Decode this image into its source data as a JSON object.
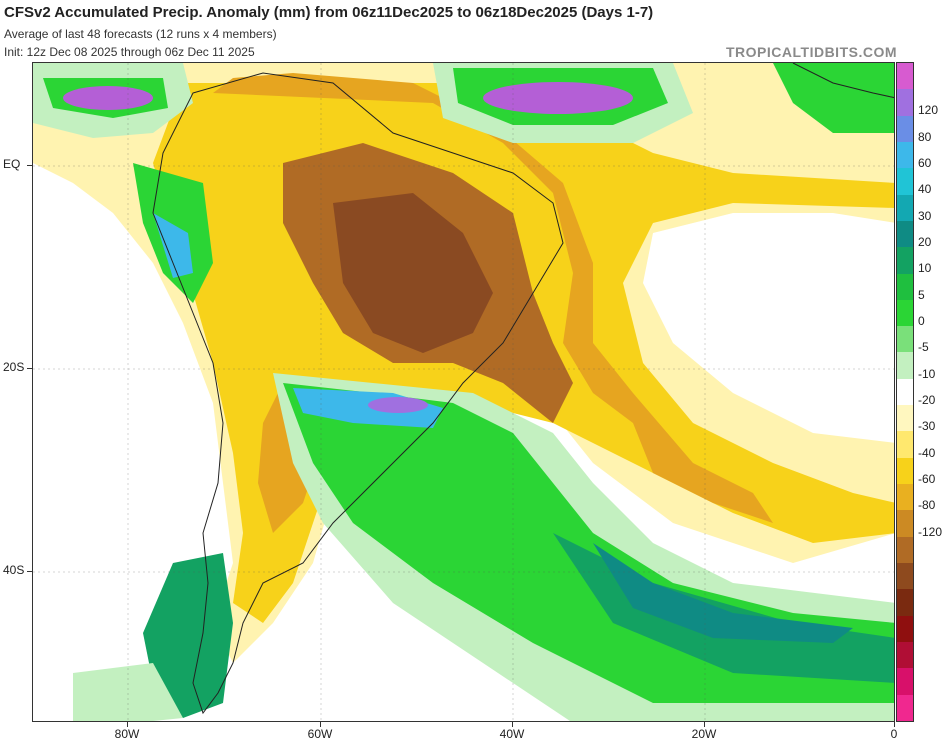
{
  "header": {
    "title": "CFSv2 Accumulated Precip. Anomaly (mm) from 06z11Dec2025 to 06z18Dec2025 (Days 1-7)",
    "subtitle": "Average of last 48 forecasts (12 runs x 4 members)",
    "init": "Init: 12z Dec 08 2025 through 06z Dec 11 2025",
    "brand": "TROPICALTIDBITS.COM"
  },
  "axes": {
    "lat_labels": [
      "EQ",
      "20S",
      "40S"
    ],
    "lon_labels": [
      "80W",
      "60W",
      "40W",
      "20W",
      "0"
    ]
  },
  "colorbar": {
    "labels": [
      "120",
      "80",
      "60",
      "40",
      "30",
      "20",
      "10",
      "5",
      "0",
      "-5",
      "-10",
      "-20",
      "-30",
      "-40",
      "-60",
      "-80",
      "-120"
    ],
    "colors": [
      "#d75bd0",
      "#a070e0",
      "#6a8ee6",
      "#3db8ea",
      "#20c4d6",
      "#13a8b2",
      "#0f8b84",
      "#13a262",
      "#1fbf3f",
      "#2bd535",
      "#7ae07a",
      "#c3f0c0",
      "#ffffff",
      "#fff7bf",
      "#ffe86e",
      "#f7d21a",
      "#e9b020",
      "#cc8a23",
      "#b06b25",
      "#8e4a1e",
      "#7a2a10",
      "#8f0f0f",
      "#b00e35",
      "#d8106a",
      "#f0288f"
    ]
  },
  "map_colors": {
    "dry_light": "#fff3b0",
    "dry_mid": "#f7d21a",
    "dry_orange": "#e6a520",
    "dry_brown": "#b06b25",
    "dry_dark": "#8a4a22",
    "wet_light": "#c3f0c0",
    "wet_green": "#2bd535",
    "wet_dark": "#13a262",
    "wet_teal": "#0f8b84",
    "wet_blue": "#3db8ea",
    "wet_purple": "#b45fd6"
  }
}
